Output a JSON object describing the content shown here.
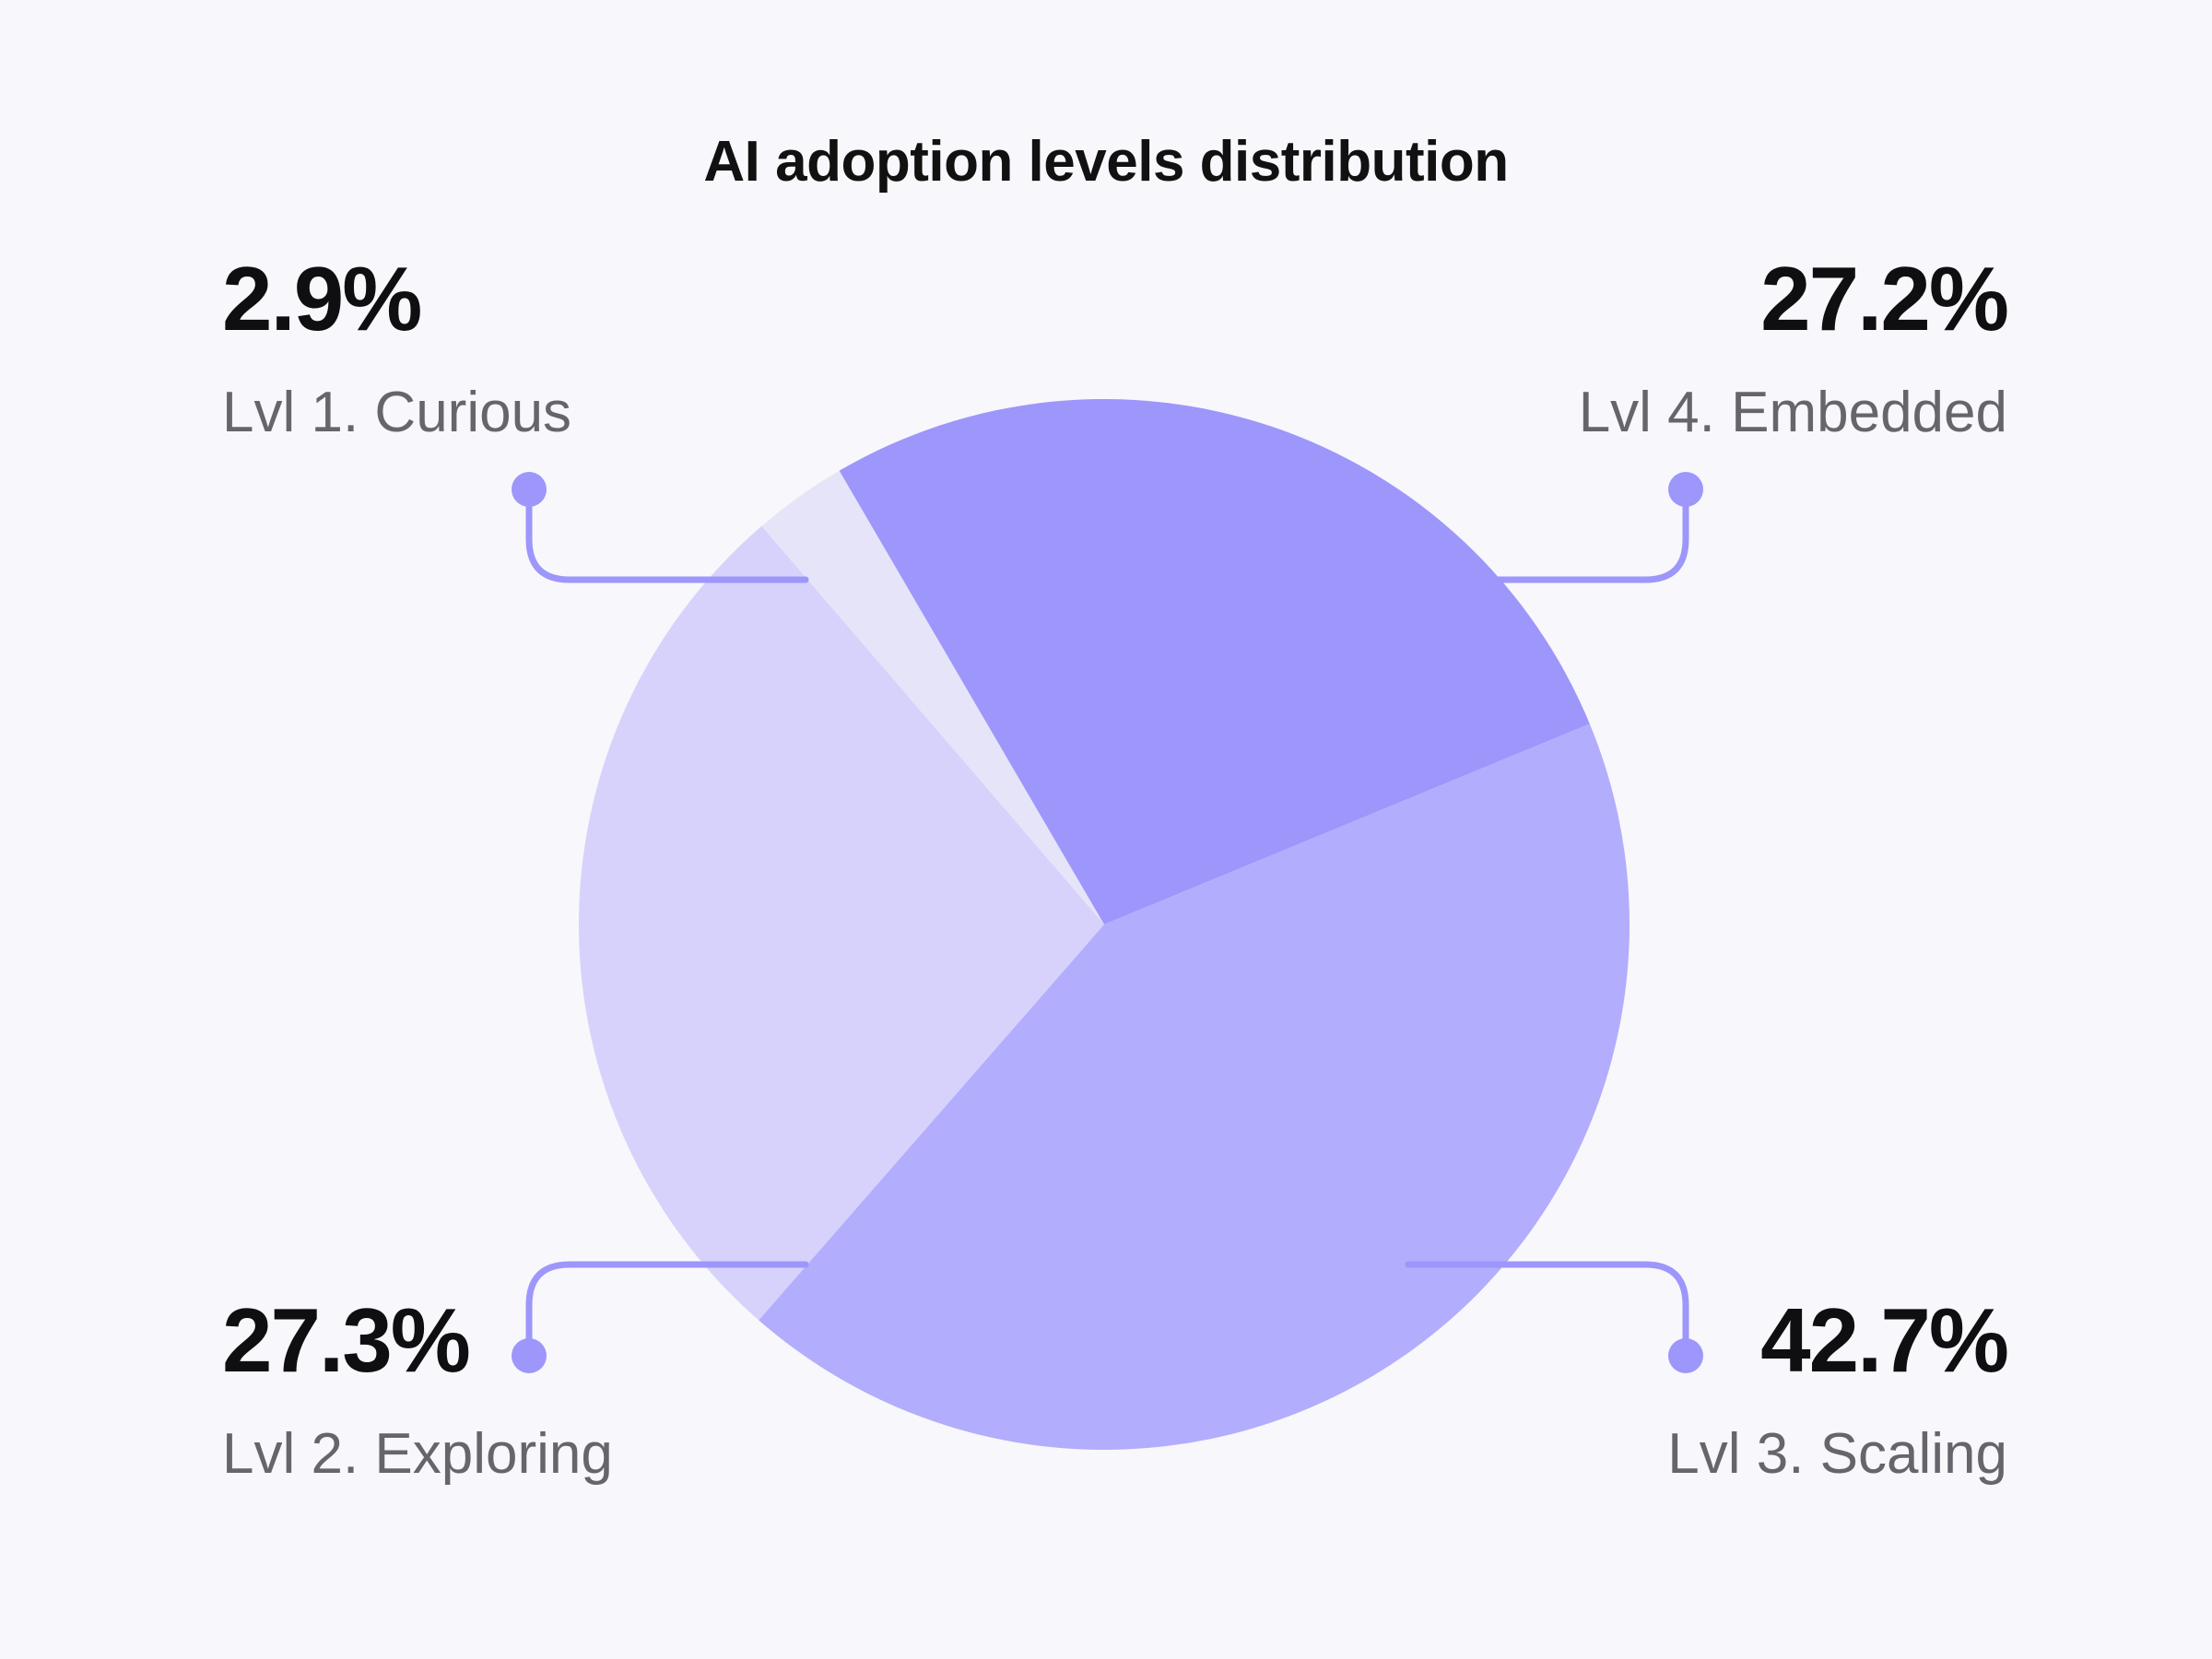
{
  "chart_data": {
    "type": "pie",
    "title": "AI adoption levels distribution",
    "slices": [
      {
        "key": "lvl1",
        "label": "Lvl 1. Curious",
        "value": 2.9,
        "display": "2.9%",
        "color": "#e6e4f8"
      },
      {
        "key": "lvl4",
        "label": "Lvl 4. Embedded",
        "value": 27.2,
        "display": "27.2%",
        "color": "#9d96fb"
      },
      {
        "key": "lvl3",
        "label": "Lvl 3. Scaling",
        "value": 42.7,
        "display": "42.7%",
        "color": "#b2adfc"
      },
      {
        "key": "lvl2",
        "label": "Lvl 2. Exploring",
        "value": 27.3,
        "display": "27.3%",
        "color": "#d6d2fb"
      }
    ],
    "start_angle_deg": -130.7,
    "direction": "clockwise",
    "leader_color": "#9d96fb"
  }
}
